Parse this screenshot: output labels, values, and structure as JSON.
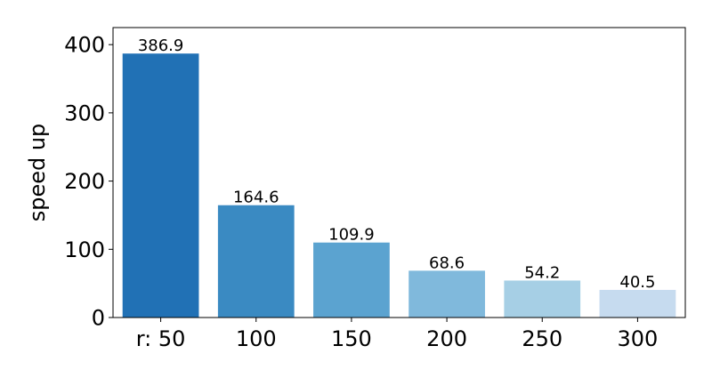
{
  "chart_data": {
    "type": "bar",
    "categories": [
      "r: 50",
      "100",
      "150",
      "200",
      "250",
      "300"
    ],
    "values": [
      386.9,
      164.6,
      109.9,
      68.6,
      54.2,
      40.5
    ],
    "data_labels": [
      "386.9",
      "164.6",
      "109.9",
      "68.6",
      "54.2",
      "40.5"
    ],
    "bar_colors": [
      "#2171b5",
      "#3a8ac2",
      "#5ba3d0",
      "#80b9dc",
      "#a6cfe5",
      "#c6dbef"
    ],
    "title": "",
    "xlabel": "",
    "ylabel": "speed up",
    "ylim": [
      0,
      425
    ],
    "yticks": [
      0,
      100,
      200,
      300,
      400
    ],
    "ytick_labels": [
      "0",
      "100",
      "200",
      "300",
      "400"
    ],
    "grid": false,
    "legend": false
  }
}
